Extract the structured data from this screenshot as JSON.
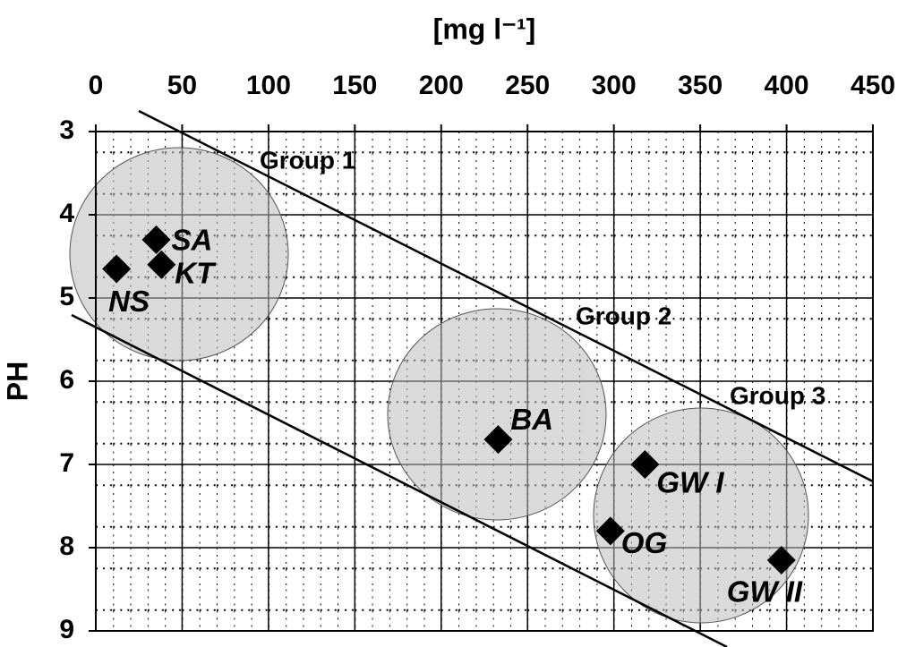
{
  "chart_data": {
    "type": "scatter",
    "xlabel": "[mg l⁻¹]",
    "ylabel": "PH",
    "x": [
      35,
      38,
      12,
      233,
      318,
      298,
      397
    ],
    "y": [
      4.3,
      4.6,
      4.65,
      6.7,
      7.0,
      7.8,
      8.15
    ],
    "point_labels": [
      "SA",
      "KT",
      "NS",
      "BA",
      "GW I",
      "OG",
      "GW II"
    ],
    "annotations": [
      "Group 1",
      "Group 2",
      "Group 3"
    ],
    "color": "#000000",
    "xlim": [
      0,
      450
    ],
    "xticks": [
      0,
      50,
      100,
      150,
      200,
      250,
      300,
      350,
      400,
      450
    ],
    "ylim": [
      3,
      9
    ],
    "yticks": [
      3,
      4,
      5,
      6,
      7,
      8,
      9
    ],
    "y_inverted": true,
    "x_axis_position": "top",
    "grid": true
  }
}
